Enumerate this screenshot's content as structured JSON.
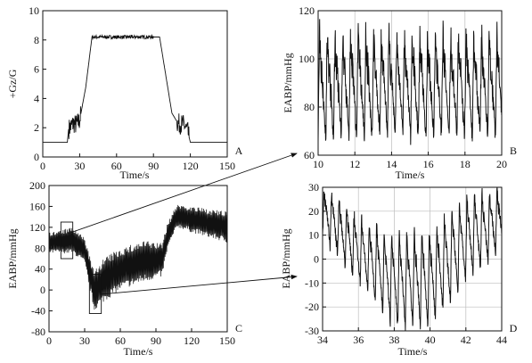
{
  "colors": {
    "ink": "#111111",
    "grid": "#bdbdbd",
    "background": "#ffffff"
  },
  "panels": [
    {
      "id": "A",
      "panel_label": "A",
      "xlabel": "Time/s",
      "ylabel": "+Gz/G",
      "xlim": [
        0,
        150
      ],
      "ylim": [
        0,
        10
      ],
      "xticks": [
        0,
        30,
        60,
        90,
        120,
        150
      ],
      "yticks": [
        0,
        2,
        4,
        6,
        8,
        10
      ],
      "grid": false
    },
    {
      "id": "B",
      "panel_label": "B",
      "xlabel": "Time/s",
      "ylabel": "EABP/mmHg",
      "xlim": [
        10,
        20
      ],
      "ylim": [
        60,
        120
      ],
      "xticks": [
        10,
        12,
        14,
        16,
        18,
        20
      ],
      "yticks": [
        60,
        80,
        100,
        120
      ],
      "grid": true
    },
    {
      "id": "C",
      "panel_label": "C",
      "xlabel": "Time/s",
      "ylabel": "EABP/mmHg",
      "xlim": [
        0,
        150
      ],
      "ylim": [
        -80,
        200
      ],
      "xticks": [
        0,
        30,
        60,
        90,
        120,
        150
      ],
      "yticks": [
        -80,
        -40,
        0,
        40,
        80,
        120,
        160,
        200
      ],
      "grid": false
    },
    {
      "id": "D",
      "panel_label": "D",
      "xlabel": "Time/s",
      "ylabel": "EABP/mmHg",
      "xlim": [
        34,
        44
      ],
      "ylim": [
        -30,
        30
      ],
      "xticks": [
        34,
        36,
        38,
        40,
        42,
        44
      ],
      "yticks": [
        -30,
        -20,
        -10,
        0,
        10,
        20,
        30
      ],
      "grid": true
    }
  ],
  "chart_data": [
    {
      "type": "line",
      "panel": "A",
      "title": "",
      "xlabel": "Time/s",
      "ylabel": "+Gz/G",
      "xlim": [
        0,
        150
      ],
      "ylim": [
        0,
        10
      ],
      "grid": false,
      "series": [
        {
          "x": [
            0,
            20,
            21,
            25,
            27,
            30,
            35,
            40,
            90,
            95,
            105,
            110,
            115,
            118,
            120,
            150
          ],
          "y": [
            1.0,
            1.0,
            1.9,
            2.3,
            2.2,
            2.5,
            4.8,
            8.2,
            8.2,
            8.2,
            3.0,
            2.3,
            2.2,
            1.7,
            1.0,
            1.0
          ]
        }
      ]
    },
    {
      "type": "line",
      "panel": "B",
      "title": "",
      "xlabel": "Time/s",
      "ylabel": "EABP/mmHg",
      "xlim": [
        10,
        20
      ],
      "ylim": [
        60,
        120
      ],
      "grid": true,
      "beat_period_s": 0.42,
      "peak_range": [
        100,
        118
      ],
      "trough_range": [
        64,
        72
      ]
    },
    {
      "type": "line",
      "panel": "C",
      "title": "",
      "xlabel": "Time/s",
      "ylabel": "EABP/mmHg",
      "xlim": [
        0,
        150
      ],
      "ylim": [
        -80,
        200
      ],
      "grid": false,
      "series": [
        {
          "name": "upper envelope",
          "x": [
            0,
            20,
            30,
            38,
            45,
            60,
            80,
            95,
            100,
            108,
            120,
            150
          ],
          "y": [
            110,
            120,
            100,
            35,
            60,
            80,
            95,
            90,
            130,
            165,
            160,
            150
          ]
        },
        {
          "name": "lower envelope",
          "x": [
            0,
            20,
            30,
            38,
            45,
            60,
            80,
            95,
            100,
            108,
            120,
            150
          ],
          "y": [
            70,
            70,
            50,
            -40,
            -25,
            0,
            15,
            25,
            80,
            120,
            110,
            90
          ]
        }
      ],
      "zoom_boxes": [
        {
          "target": "B",
          "x_range": [
            10,
            20
          ],
          "y_range": [
            60,
            130
          ]
        },
        {
          "target": "D",
          "x_range": [
            34,
            44
          ],
          "y_range": [
            -45,
            30
          ]
        }
      ]
    },
    {
      "type": "line",
      "panel": "D",
      "title": "",
      "xlabel": "Time/s",
      "ylabel": "EABP/mmHg",
      "xlim": [
        34,
        44
      ],
      "ylim": [
        -30,
        30
      ],
      "grid": true,
      "beat_period_s": 0.42,
      "peak_trend": {
        "x": [
          34,
          36,
          38,
          40,
          42,
          44
        ],
        "y": [
          30,
          18,
          10,
          12,
          26,
          30
        ]
      },
      "trough_trend": {
        "x": [
          34,
          36,
          38,
          40,
          42,
          44
        ],
        "y": [
          10,
          -10,
          -28,
          -28,
          -10,
          5
        ]
      }
    }
  ]
}
